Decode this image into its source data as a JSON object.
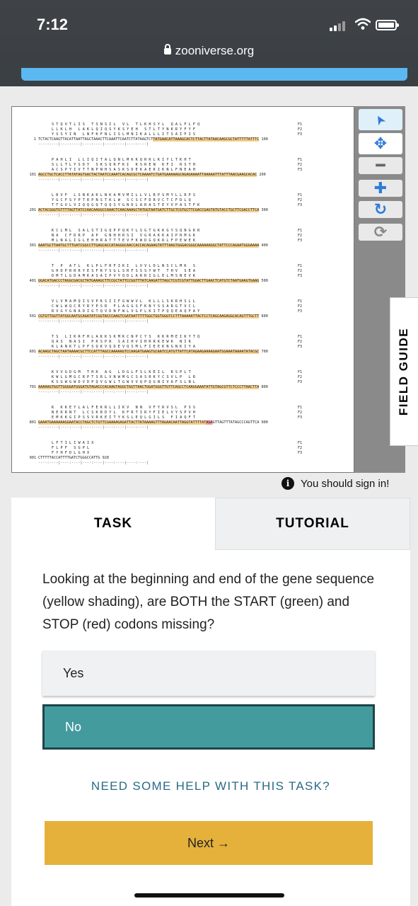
{
  "status_bar": {
    "time": "7:12",
    "url": "zooniverse.org"
  },
  "sequence_viewer": {
    "blocks": [
      {
        "start": "1",
        "f1": "S T Q V T L I S   T S N S I L   V L   T L K H S Y L   Q A L F L F Q",
        "f2": "L L K L H   L A K L Q I Q S Y K S Y E H   S T L T Y N K R Y F Y F",
        "f3": "Y S S Y I N   L N F K F N L I S L M N I K A L L L I T S A I F I S",
        "dna": "TCTACTCAAGTTACATTAATTAGCTAAACTTCAAATTCAATCTTATAAGTCTTATGAACATTAAAGCACTCTTACTTATAACAAGCGCTATTTTTATTTC",
        "end": "100"
      },
      {
        "start": "101",
        "f1": "P A H L I   L L I Q I T A L Q N L M K K Q R K L K I Y L T K H T",
        "f2": "S L L T L Y S D Y   S K S Q R F K I   K S R E N   K F I   R S T H",
        "f3": "A C S P Y I V T T N P N H S A S K S D E K A E K I K N L F N E A H",
        "dna": "AGCCTGCTCACCTTATATAGTGACTACTAATCCAAATCACAGCGCTCAAAATCTGATGAAAAAGCAGAGAAAATTAAAAATTTATTTAACGAAGCACAC",
        "end": "200"
      },
      {
        "start": "201",
        "f1": "L R V F   L S N K A K L N K A M V M I L L V L R P S M Y L L R P S",
        "f2": "Y G C F S Y P T R P N S T K L W   S C S C F D R V C T C F D L Q",
        "f3": "T T G V L V I Q Q G Q T Q Q S Y G N D L A R A S T E Y V P A S T F K",
        "dna": "ACTACGGGTGTTTTAGTTATCCAACAAGGCCAAACTCAACAAAGCTATGGTAATGATCTTGCTCGTGCTTCGACCGAGTATGTACCTGCTTCGACCTTCA",
        "end": "300"
      },
      {
        "start": "301",
        "f1": "K C L M L   S A L S T I G Q P P Q K Y L S G T G K K G Y S Q N G K R",
        "f2": "N A   C F D R P   A P   G N H H R S I   V G R A K K A I P R M G K",
        "f3": "M L N A L I G L E H H R A T T T E V F K W D G Q K R L F P E W E K",
        "dna": "AAATGCTTAATGCTTTGATCGGCCTTGAGCACCATAGGGCAACCACCACAGAAGTATTTAAGTGGGACGGGCAAAAAAGGCTATTCCCAGAATGGGAAAA",
        "end": "400"
      },
      {
        "start": "401",
        "f1": "T   P   A T L   K L P L F R F I K I   L V V L D L N S C L M K   S",
        "f2": "G H D P R R R Y E S F R Y S G L S R F S S S Y W T   T H V   S E A",
        "f3": "D M T L G D A M K A S A I P V Y Q D L A R R I G L E L M S N E V K",
        "dna": "GGACATGACCCTAGGCGACGCTATGAAAGCTTCCGCTATTCCGGTTTATCAAGATTTAGCTCGTCGTATTGGACTTGAACTCATGTCTAATGAAGTGAAG",
        "end": "500"
      },
      {
        "start": "501",
        "f1": "V L V M A M Q I S V P K S I I F G W W V L   K L L L S K R H S L L",
        "f2": "C W L W Q C R Y R Y P S R   F L A G G S F K N Y S S A R G T V C L",
        "f3": "R V G Y G N A D I G T Q V D N F W L V G P L K I T P Q Q E A Q F A Y",
        "dna": "CGTGTTGGTTATGGCAATGCAGATATCGGTACCCAAGTCGATAATTTTTGGCTGGTGGGTCCTTTAAAAATTACTCCTCAGCAAGAGGCACAGTTTGCTT",
        "end": "600"
      },
      {
        "start": "601",
        "f1": "T S   L I K R F H L A K K S K M K C N P C Y S   K K R M E I K Y T Q",
        "f2": "Q A S   N A S I   P K S P R   S A I H V I H R R K E W K   N I R",
        "f3": "K L A N K T L P F S Q K V Q D E V Q S M L F I E E K N G N K I Y A",
        "dna": "ACAAGCTAGCTAATAAAACGCTTCCATTTAGCCAAAAAGTCCAAGATGAAGTGCAATCCATGTTATTCATAGAAGAAAAGAATGGAAATAAAATATACGC",
        "end": "700"
      },
      {
        "start": "701",
        "f1": "K V V G D G M   T H K   A G   L D G L F S L K E I L   R S P L T",
        "f2": "K W L G M G C R P T S R L V N W M G C S A S R K Y C S V L P   L R",
        "f3": "K S G W G W D V D P Q V G W L T G W V V Q P Q G N I V A F S L N L",
        "dna": "AAAAAGTGGTTGGGGATGGGATGTAGACCCACAAGTAGGCTGGTTAACTGGATGGGTTGTTCAGCCTCAAGGAAATATTGTAGCGTTCTCCCTTAACTTA",
        "end": "800"
      },
      {
        "start": "801",
        "f1": "K   K K E Y L A L F E K R L L I K V   N N   V F Y R V S L   P S S",
        "f2": "N E K R N T   L C S K R D Y L   K F R T I R Y F I E L V Y S P V H",
        "f3": "E M K K G I P S S V R K E I T Y K S L E Q L G I L S   F I A Q F T",
        "dna": "GAAATGAAAAAAGGAATACCTAGCTCTGTTCGAAAAGAGATTACTTATAAAAGTTTAGAACAATTAGGTATTTTATAGAGTTAGTTTATAGCCCAGTTCA",
        "end": "900"
      },
      {
        "start": "901",
        "f1": "L F T I L I W A I X",
        "f2": "F L P F   S G P L",
        "f3": "F Y H F D L G H X",
        "dna": "CTTTTTACCATTTTGATCTGGGCCATTG",
        "end": "928"
      }
    ],
    "frame_labels": [
      "F1",
      "F2",
      "F3"
    ]
  },
  "toolbar": {
    "tools": [
      {
        "name": "pointer-tool",
        "icon": "arrow-pointer-icon",
        "glyph": "➤"
      },
      {
        "name": "move-tool",
        "icon": "move-arrows-icon",
        "glyph": "✥"
      },
      {
        "name": "zoom-out-button",
        "icon": "minus-icon",
        "glyph": "━"
      },
      {
        "name": "zoom-in-button",
        "icon": "plus-icon",
        "glyph": "✚"
      },
      {
        "name": "reset-button",
        "icon": "rotate-icon",
        "glyph": "↻"
      },
      {
        "name": "refresh-button",
        "icon": "sync-icon",
        "glyph": "⟳"
      }
    ]
  },
  "field_guide": {
    "label": "FIELD GUIDE"
  },
  "sign_in_notice": {
    "text": "You should sign in!"
  },
  "tabs": {
    "task": "TASK",
    "tutorial": "TUTORIAL"
  },
  "task": {
    "question": "Looking at the beginning and end of the gene sequence (yellow shading), are BOTH the START (green) and STOP (red) codons missing?",
    "answers": [
      {
        "label": "Yes",
        "selected": false
      },
      {
        "label": "No",
        "selected": true
      }
    ],
    "help_link": "NEED SOME HELP WITH THIS TASK?",
    "next_button": "Next →"
  },
  "colors": {
    "accent_teal": "#449b9e",
    "next_yellow": "#e5b13b",
    "help_link": "#2a6a87",
    "highlight": "#f6d08e",
    "stop_codon": "#f39a9a"
  }
}
